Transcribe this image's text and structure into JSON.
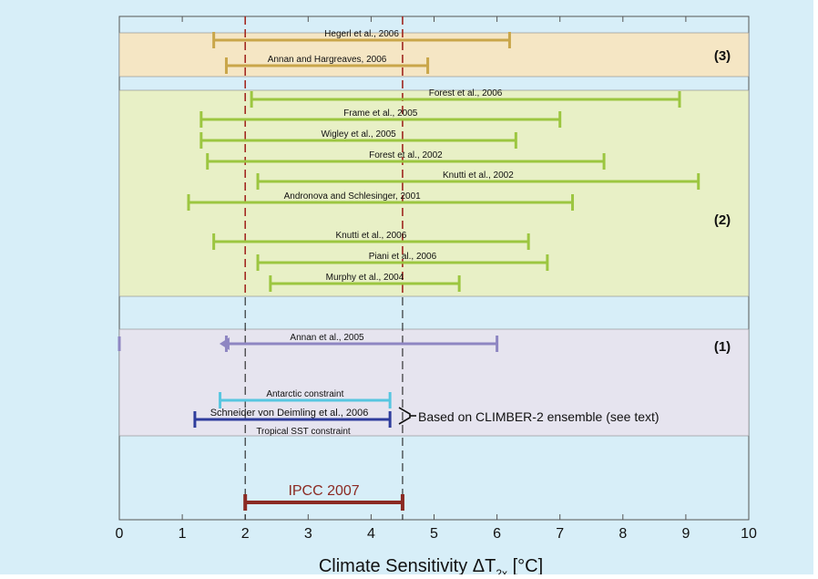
{
  "chart_data": {
    "type": "range",
    "xlabel_main": "Climate Sensitivity ΔT",
    "xlabel_sub": "2x",
    "xlabel_unit": " [°C]",
    "xlim": [
      0,
      10
    ],
    "x_ticks": [
      "0",
      "1",
      "2",
      "3",
      "4",
      "5",
      "6",
      "7",
      "8",
      "9",
      "10"
    ],
    "reference_lines": [
      2,
      4.5
    ],
    "groups": [
      {
        "label": "(3)",
        "color": "#f5e6c4"
      },
      {
        "label": "(2)",
        "color": "#e8f0c6"
      },
      {
        "label": "(1)",
        "color": "#e6e4ef"
      }
    ],
    "ranges": [
      {
        "name": "Hegerl et al., 2006",
        "low": 1.5,
        "high": 6.2,
        "color": "#c9a64a"
      },
      {
        "name": "Annan and Hargreaves, 2006",
        "low": 1.7,
        "high": 4.9,
        "color": "#c9a64a"
      },
      {
        "name": "Forest et al., 2006",
        "low": 2.1,
        "high": 8.9,
        "color": "#9cc640"
      },
      {
        "name": "Frame et al., 2005",
        "low": 1.3,
        "high": 7.0,
        "color": "#9cc640"
      },
      {
        "name": "Wigley et al., 2005",
        "low": 1.3,
        "high": 6.3,
        "color": "#9cc640"
      },
      {
        "name": "Forest et al., 2002",
        "low": 1.4,
        "high": 7.7,
        "color": "#9cc640"
      },
      {
        "name": "Knutti et al., 2002",
        "low": 2.2,
        "high": 9.2,
        "color": "#9cc640"
      },
      {
        "name": "Andronova and Schlesinger, 2001",
        "low": 1.1,
        "high": 7.2,
        "color": "#9cc640"
      },
      {
        "name": "Knutti et al., 2006",
        "low": 1.5,
        "high": 6.5,
        "color": "#9cc640"
      },
      {
        "name": "Piani et al., 2006",
        "low": 2.2,
        "high": 6.8,
        "color": "#9cc640"
      },
      {
        "name": "Murphy et al., 2004",
        "low": 2.4,
        "high": 5.4,
        "color": "#9cc640"
      },
      {
        "name": "Annan et al., 2005",
        "low": 1.7,
        "high": 6.0,
        "color": "#8e86c2"
      },
      {
        "name": "Antarctic constraint",
        "low": 1.6,
        "high": 4.3,
        "color": "#57c6e0"
      },
      {
        "name": "Schneider von Deimling et al., 2006",
        "low": 1.2,
        "high": 4.3,
        "color": "#2f3d9c"
      },
      {
        "name": "IPCC 2007",
        "low": 2.0,
        "high": 4.5,
        "color": "#8b2a23"
      }
    ],
    "bracket_label": "Based on CLIMBER-2 ensemble (see text)",
    "extra_label": "Tropical SST constraint"
  }
}
